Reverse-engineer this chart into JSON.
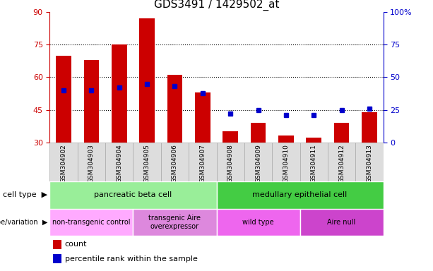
{
  "title": "GDS3491 / 1429502_at",
  "samples": [
    "GSM304902",
    "GSM304903",
    "GSM304904",
    "GSM304905",
    "GSM304906",
    "GSM304907",
    "GSM304908",
    "GSM304909",
    "GSM304910",
    "GSM304911",
    "GSM304912",
    "GSM304913"
  ],
  "counts": [
    70,
    68,
    75,
    87,
    61,
    53,
    35,
    39,
    33,
    32,
    39,
    44
  ],
  "percentile_ranks": [
    40,
    40,
    42,
    45,
    43,
    38,
    22,
    25,
    21,
    21,
    25,
    26
  ],
  "bar_bottom": 30,
  "ylim_left": [
    30,
    90
  ],
  "ylim_right": [
    0,
    100
  ],
  "yticks_left": [
    30,
    45,
    60,
    75,
    90
  ],
  "yticks_right": [
    0,
    25,
    50,
    75,
    100
  ],
  "grid_lines": [
    45,
    60,
    75
  ],
  "bar_color": "#cc0000",
  "percentile_color": "#0000cc",
  "bar_width": 0.55,
  "cell_type_groups": [
    {
      "label": "pancreatic beta cell",
      "start": 0,
      "end": 5,
      "color": "#99ee99"
    },
    {
      "label": "medullary epithelial cell",
      "start": 6,
      "end": 11,
      "color": "#44cc44"
    }
  ],
  "genotype_groups": [
    {
      "label": "non-transgenic control",
      "start": 0,
      "end": 2,
      "color": "#ffaaff"
    },
    {
      "label": "transgenic Aire\noverexpressor",
      "start": 3,
      "end": 5,
      "color": "#dd88dd"
    },
    {
      "label": "wild type",
      "start": 6,
      "end": 8,
      "color": "#ee66ee"
    },
    {
      "label": "Aire null",
      "start": 9,
      "end": 11,
      "color": "#cc44cc"
    }
  ],
  "legend_count_color": "#cc0000",
  "legend_pct_color": "#0000cc",
  "left_axis_color": "#cc0000",
  "right_axis_color": "#0000cc",
  "tick_label_bg": "#dddddd",
  "tick_label_border": "#aaaaaa"
}
